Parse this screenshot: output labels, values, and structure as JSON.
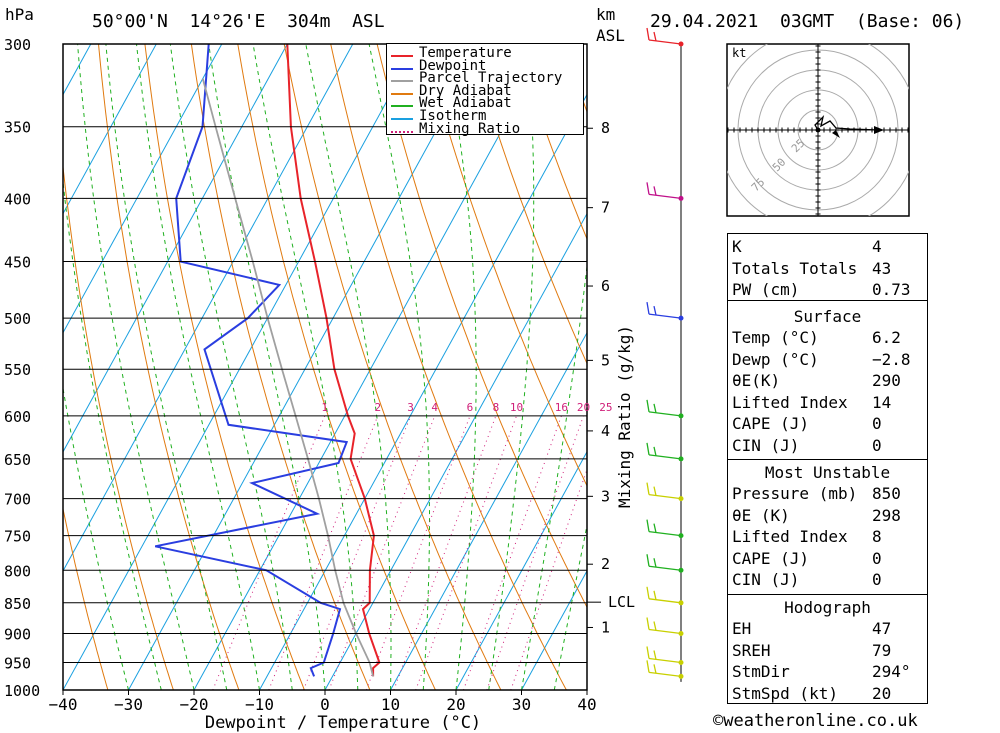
{
  "header": {
    "pressure_unit": "hPa",
    "location": "50°00'N  14°26'E  304m  ASL",
    "km_unit": "km",
    "asl_label": "ASL",
    "datetime": "29.04.2021  03GMT  (Base: 06)"
  },
  "legend": [
    {
      "label": "Temperature",
      "color": "#e8232a",
      "style": "solid"
    },
    {
      "label": "Dewpoint",
      "color": "#2a3ee0",
      "style": "solid"
    },
    {
      "label": "Parcel Trajectory",
      "color": "#a0a0a0",
      "style": "solid"
    },
    {
      "label": "Dry Adiabat",
      "color": "#e07a10",
      "style": "solid"
    },
    {
      "label": "Wet Adiabat",
      "color": "#20b020",
      "style": "solid"
    },
    {
      "label": "Isotherm",
      "color": "#1aa0e0",
      "style": "solid"
    },
    {
      "label": "Mixing Ratio",
      "color": "#d0207a",
      "style": "dotted"
    }
  ],
  "chart_data": {
    "type": "line",
    "chart_kind": "skew-T log-P sounding",
    "xlabel": "Dewpoint / Temperature (°C)",
    "ylabel": "hPa",
    "xlim": [
      -40,
      40
    ],
    "ylim": [
      1000,
      300
    ],
    "y_scale": "log",
    "grid": true,
    "x_ticks": [
      "−40",
      "−30",
      "−20",
      "−10",
      "0",
      "10",
      "20",
      "30",
      "40"
    ],
    "pressure_levels": [
      300,
      350,
      400,
      450,
      500,
      550,
      600,
      650,
      700,
      750,
      800,
      850,
      900,
      950,
      1000
    ],
    "height_axis_label": "km ASL",
    "height_ticks": [
      {
        "label": "8",
        "p": 351
      },
      {
        "label": "7",
        "p": 407
      },
      {
        "label": "6",
        "p": 471
      },
      {
        "label": "5",
        "p": 541
      },
      {
        "label": "4",
        "p": 617
      },
      {
        "label": "3",
        "p": 697
      },
      {
        "label": "2",
        "p": 791
      },
      {
        "label": "1",
        "p": 890
      }
    ],
    "lcl": {
      "label": "LCL",
      "p": 849
    },
    "mixing_ratio_label": "Mixing Ratio (g/kg)",
    "mixing_ratio_values": [
      "1",
      "2",
      "3",
      "4",
      "6",
      "8",
      "10",
      "16",
      "20",
      "25"
    ],
    "series": [
      {
        "name": "Temperature",
        "color": "#e8232a",
        "points": [
          [
            975,
            6.2
          ],
          [
            960,
            5.5
          ],
          [
            950,
            6.0
          ],
          [
            900,
            2.0
          ],
          [
            860,
            -1.0
          ],
          [
            850,
            -0.5
          ],
          [
            800,
            -3.2
          ],
          [
            750,
            -5.5
          ],
          [
            700,
            -10.0
          ],
          [
            650,
            -15.5
          ],
          [
            620,
            -17.0
          ],
          [
            600,
            -19.5
          ],
          [
            550,
            -25.5
          ],
          [
            500,
            -31.0
          ],
          [
            450,
            -37.5
          ],
          [
            400,
            -45.0
          ],
          [
            350,
            -52.5
          ],
          [
            300,
            -60.0
          ]
        ]
      },
      {
        "name": "Dewpoint",
        "color": "#2a3ee0",
        "points": [
          [
            975,
            -2.8
          ],
          [
            960,
            -4.0
          ],
          [
            950,
            -2.5
          ],
          [
            900,
            -3.5
          ],
          [
            860,
            -4.5
          ],
          [
            850,
            -8.0
          ],
          [
            800,
            -19.0
          ],
          [
            765,
            -38.0
          ],
          [
            720,
            -16.0
          ],
          [
            680,
            -28.5
          ],
          [
            655,
            -17.0
          ],
          [
            630,
            -17.5
          ],
          [
            610,
            -37.0
          ],
          [
            530,
            -47.0
          ],
          [
            500,
            -43.0
          ],
          [
            470,
            -41.0
          ],
          [
            450,
            -58.0
          ],
          [
            400,
            -64.0
          ],
          [
            350,
            -66.0
          ],
          [
            300,
            -72.0
          ]
        ]
      },
      {
        "name": "Parcel Trajectory",
        "color": "#a0a0a0",
        "points": [
          [
            975,
            6.2
          ],
          [
            950,
            4.5
          ],
          [
            900,
            0.0
          ],
          [
            850,
            -4.5
          ],
          [
            800,
            -8.5
          ],
          [
            750,
            -12.5
          ],
          [
            700,
            -17.0
          ],
          [
            650,
            -22.0
          ],
          [
            600,
            -27.5
          ],
          [
            550,
            -33.5
          ],
          [
            500,
            -40.0
          ],
          [
            450,
            -47.0
          ],
          [
            400,
            -55.0
          ],
          [
            350,
            -64.0
          ],
          [
            320,
            -70.0
          ]
        ]
      }
    ],
    "wind_barbs": [
      {
        "p": 300,
        "color": "#e8232a"
      },
      {
        "p": 400,
        "color": "#c0108a"
      },
      {
        "p": 500,
        "color": "#2a3ee0"
      },
      {
        "p": 600,
        "color": "#20b020"
      },
      {
        "p": 650,
        "color": "#20b020"
      },
      {
        "p": 700,
        "color": "#c8d000"
      },
      {
        "p": 750,
        "color": "#20b020"
      },
      {
        "p": 800,
        "color": "#20b020"
      },
      {
        "p": 850,
        "color": "#c8d000"
      },
      {
        "p": 900,
        "color": "#c8d000"
      },
      {
        "p": 950,
        "color": "#c8d000"
      },
      {
        "p": 975,
        "color": "#c8d000"
      }
    ],
    "hodograph": {
      "unit": "kt",
      "ring_labels": [
        "25",
        "50",
        "75"
      ]
    }
  },
  "indices": [
    {
      "label": "K",
      "value": "4"
    },
    {
      "label": "Totals Totals",
      "value": "43"
    },
    {
      "label": "PW (cm)",
      "value": "0.73"
    }
  ],
  "surface": {
    "title": "Surface",
    "rows": [
      {
        "label": "Temp (°C)",
        "value": "6.2"
      },
      {
        "label": "Dewp (°C)",
        "value": "−2.8"
      },
      {
        "label": "θE(K)",
        "value": "290"
      },
      {
        "label": "Lifted Index",
        "value": "14"
      },
      {
        "label": "CAPE (J)",
        "value": "0"
      },
      {
        "label": "CIN (J)",
        "value": "0"
      }
    ]
  },
  "most_unstable": {
    "title": "Most Unstable",
    "rows": [
      {
        "label": "Pressure (mb)",
        "value": "850"
      },
      {
        "label": "θE (K)",
        "value": "298"
      },
      {
        "label": "Lifted Index",
        "value": "8"
      },
      {
        "label": "CAPE (J)",
        "value": "0"
      },
      {
        "label": "CIN (J)",
        "value": "0"
      }
    ]
  },
  "hodograph_table": {
    "title": "Hodograph",
    "rows": [
      {
        "label": "EH",
        "value": "47"
      },
      {
        "label": "SREH",
        "value": "79"
      },
      {
        "label": "StmDir",
        "value": "294°"
      },
      {
        "label": "StmSpd (kt)",
        "value": "20"
      }
    ]
  },
  "footer": {
    "copyright": "©weatheronline.co.uk"
  }
}
